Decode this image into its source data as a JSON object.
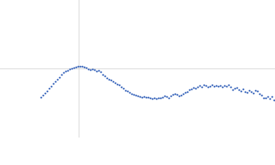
{
  "chart_data": {
    "type": "scatter",
    "color": "#4a72c0",
    "xlim": [
      0,
      400
    ],
    "ylim": [
      0,
      200
    ],
    "reference_lines": {
      "x": 115,
      "y": 100,
      "color": "#d0d0d0"
    },
    "x": [
      60,
      63,
      66,
      69,
      72,
      75,
      78,
      81,
      84,
      87,
      90,
      93,
      96,
      99,
      102,
      105,
      108,
      111,
      114,
      117,
      120,
      123,
      126,
      129,
      132,
      135,
      138,
      141,
      144,
      147,
      150,
      153,
      156,
      159,
      162,
      165,
      168,
      171,
      174,
      177,
      180,
      183,
      186,
      189,
      192,
      195,
      198,
      201,
      204,
      207,
      210,
      213,
      216,
      219,
      222,
      225,
      228,
      231,
      234,
      237,
      240,
      243,
      246,
      249,
      252,
      255,
      258,
      261,
      264,
      267,
      270,
      273,
      276,
      279,
      282,
      285,
      288,
      291,
      294,
      297,
      300,
      303,
      306,
      309,
      312,
      315,
      318,
      321,
      324,
      327,
      330,
      333,
      336,
      339,
      342,
      345,
      348,
      351,
      354,
      357,
      360,
      363,
      366,
      369,
      372,
      375,
      378,
      381,
      384,
      387,
      390,
      393,
      396,
      399
    ],
    "y": [
      58,
      61,
      64,
      67,
      71,
      74,
      78,
      81,
      84,
      87,
      91,
      94,
      96,
      97,
      99,
      100,
      101,
      102,
      103,
      103,
      103,
      102,
      101,
      99,
      98,
      99,
      98,
      96,
      97,
      95,
      91,
      89,
      86,
      84,
      83,
      81,
      79,
      77,
      76,
      73,
      71,
      68,
      67,
      65,
      63,
      62,
      61,
      60,
      59,
      58,
      59,
      58,
      58,
      57,
      56,
      57,
      56,
      57,
      57,
      58,
      60,
      59,
      57,
      60,
      62,
      63,
      62,
      60,
      61,
      63,
      65,
      66,
      69,
      70,
      72,
      71,
      73,
      75,
      73,
      76,
      75,
      73,
      74,
      76,
      74,
      75,
      74,
      75,
      73,
      75,
      74,
      76,
      73,
      69,
      71,
      72,
      69,
      67,
      70,
      66,
      65,
      68,
      66,
      64,
      68,
      67,
      63,
      61,
      57,
      57,
      59,
      56,
      59,
      54
    ]
  }
}
